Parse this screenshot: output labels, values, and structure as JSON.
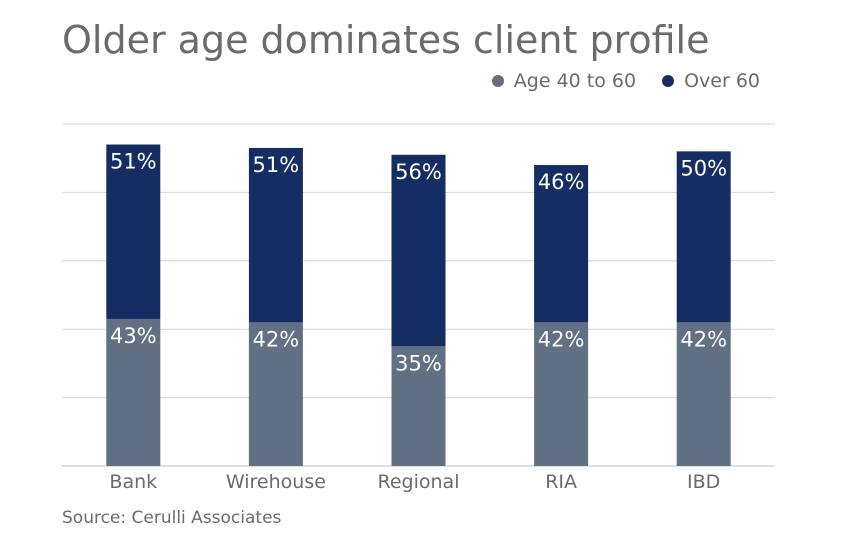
{
  "title": "Older age dominates client profile",
  "source": "Source: Cerulli Associates",
  "legend": [
    {
      "label": "Age 40 to 60",
      "color": "#617083"
    },
    {
      "label": "Over 60",
      "color": "#162d63"
    }
  ],
  "chart_data": {
    "type": "bar",
    "stacked": true,
    "categories": [
      "Bank",
      "Wirehouse",
      "Regional",
      "RIA",
      "IBD"
    ],
    "series": [
      {
        "name": "Age 40 to 60",
        "values": [
          43,
          42,
          35,
          42,
          42
        ],
        "labels": [
          "43%",
          "42%",
          "35%",
          "42%",
          "42%"
        ],
        "color": "#617083"
      },
      {
        "name": "Over 60",
        "values": [
          51,
          51,
          56,
          46,
          50
        ],
        "labels": [
          "51%",
          "51%",
          "56%",
          "46%",
          "50%"
        ],
        "color": "#162d63"
      }
    ],
    "ylim": [
      0,
      100
    ],
    "grid": true
  }
}
